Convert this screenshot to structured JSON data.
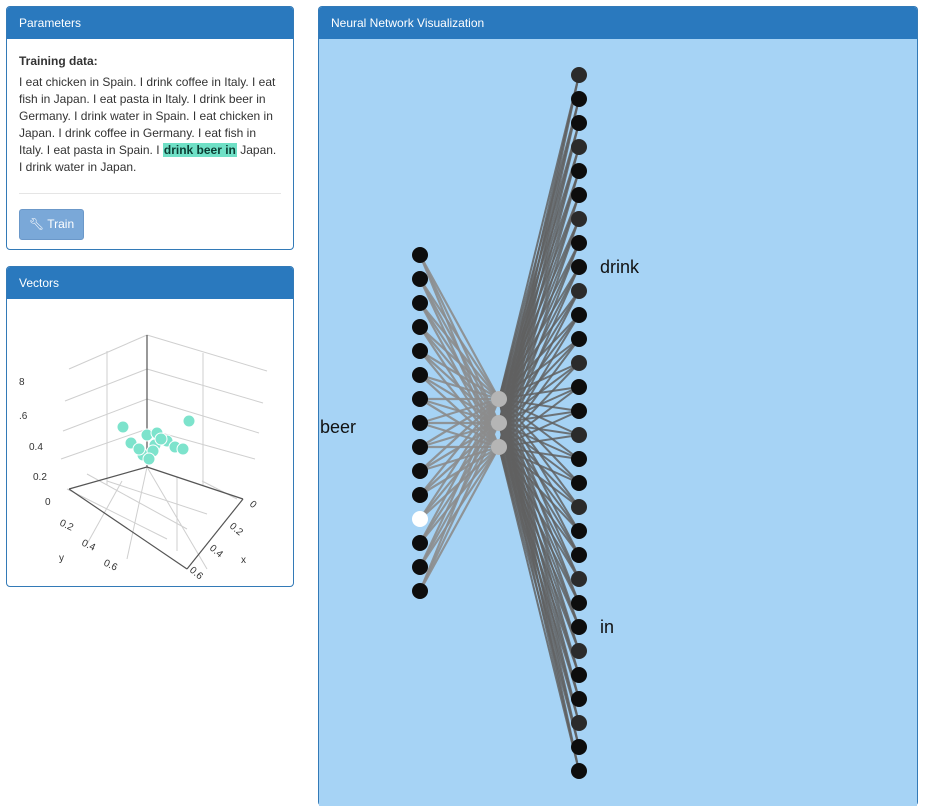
{
  "params": {
    "title": "Parameters",
    "training_label": "Training data:",
    "training_before": "I eat chicken in Spain. I drink coffee in Italy. I eat fish in Japan. I eat pasta in Italy. I drink beer in Germany. I drink water in Spain. I eat chicken in Japan. I drink coffee in Germany. I eat fish in Italy. I eat pasta in Spain. I ",
    "training_highlight": "drink beer in",
    "training_after": " Japan. I drink water in Japan.",
    "train_button": "Train"
  },
  "vectors": {
    "title": "Vectors",
    "z_ticks": [
      "8",
      ".6",
      "0.4",
      "0.2",
      "0"
    ],
    "y_ticks": [
      "0.2",
      "0.4",
      "0.6"
    ],
    "x_ticks": [
      "0",
      "0.2",
      "0.4",
      "0.6"
    ],
    "x_label": "x",
    "y_label": "y",
    "point_color": "#7de3cc"
  },
  "nn": {
    "title": "Neural Network Visualization",
    "input_word": "beer",
    "output_words": [
      {
        "word": "drink",
        "index": 8
      },
      {
        "word": "in",
        "index": 23
      }
    ],
    "input_count": 15,
    "active_input": 11,
    "hidden_count": 3,
    "output_count": 30,
    "bg_color": "#a6d3f5"
  }
}
